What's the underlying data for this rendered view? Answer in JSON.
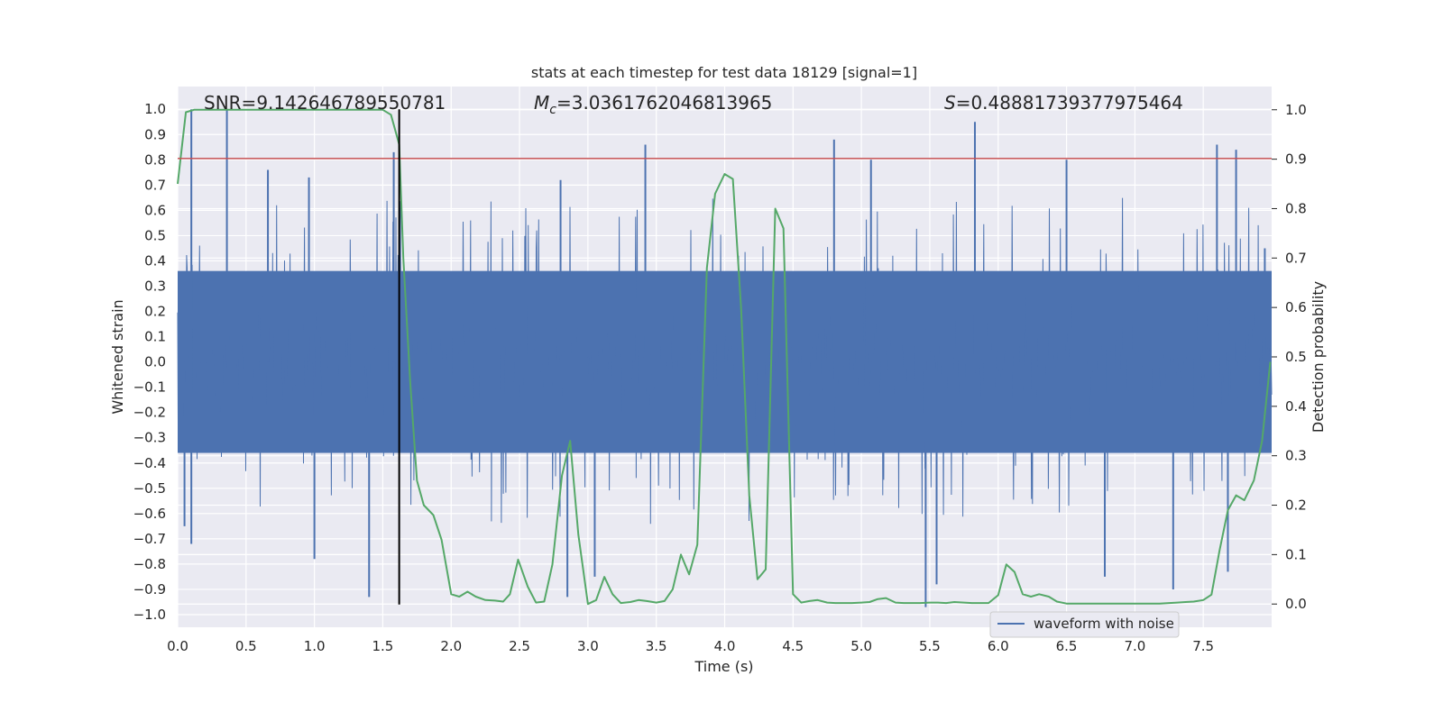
{
  "chart_data": {
    "type": "line",
    "title": "stats at each timestep for test data 18129 [signal=1]",
    "xlabel": "Time (s)",
    "ylabel": "Whitened strain",
    "y2label": "Detection probability",
    "xlim": [
      0.0,
      8.0
    ],
    "ylim": [
      -1.05,
      1.09
    ],
    "y2lim": [
      -0.047,
      1.047
    ],
    "xticks": [
      "0.0",
      "0.5",
      "1.0",
      "1.5",
      "2.0",
      "2.5",
      "3.0",
      "3.5",
      "4.0",
      "4.5",
      "5.0",
      "5.5",
      "6.0",
      "6.5",
      "7.0",
      "7.5"
    ],
    "yticks": [
      "1.0",
      "0.9",
      "0.8",
      "0.7",
      "0.6",
      "0.5",
      "0.4",
      "0.3",
      "0.2",
      "0.1",
      "0.0",
      "-0.1",
      "-0.2",
      "-0.3",
      "-0.4",
      "-0.5",
      "-0.6",
      "-0.7",
      "-0.8",
      "-0.9",
      "-1.0"
    ],
    "y2ticks": [
      "1.0",
      "0.9",
      "0.8",
      "0.7",
      "0.6",
      "0.5",
      "0.4",
      "0.3",
      "0.2",
      "0.1",
      "0.0"
    ],
    "grid": true,
    "legend_placement": "lower-right",
    "annotations": {
      "snr_prefix": "SNR=",
      "snr_value": "9.142646789550781",
      "mc_symbol": "M",
      "mc_subscript": "c",
      "mc_value": "=3.0361762046813965",
      "s_symbol": "S",
      "s_value": "=0.48881739377975464"
    },
    "series": [
      {
        "name": "waveform with noise",
        "axis": "left",
        "color": "#4c72b0",
        "style": "dense noise",
        "spikes_high": [
          [
            0.1,
            1.0
          ],
          [
            0.36,
            1.0
          ],
          [
            0.66,
            0.76
          ],
          [
            0.96,
            0.73
          ],
          [
            1.58,
            0.83
          ],
          [
            2.8,
            0.72
          ],
          [
            3.42,
            0.86
          ],
          [
            4.8,
            0.88
          ],
          [
            5.07,
            0.8
          ],
          [
            5.83,
            0.95
          ],
          [
            6.5,
            0.8
          ],
          [
            7.6,
            0.86
          ],
          [
            7.74,
            0.84
          ],
          [
            7.95,
            0.45
          ]
        ],
        "spikes_low": [
          [
            0.05,
            -0.65
          ],
          [
            0.1,
            -0.72
          ],
          [
            1.0,
            -0.78
          ],
          [
            1.4,
            -0.93
          ],
          [
            2.85,
            -0.93
          ],
          [
            3.05,
            -0.85
          ],
          [
            5.47,
            -0.97
          ],
          [
            5.55,
            -0.88
          ],
          [
            6.78,
            -0.85
          ],
          [
            7.28,
            -0.9
          ],
          [
            7.68,
            -0.83
          ]
        ]
      },
      {
        "name": "",
        "axis": "right",
        "color": "#55a868",
        "x": [
          0.0,
          0.06,
          0.12,
          0.5,
          1.0,
          1.5,
          1.56,
          1.62,
          1.65,
          1.7,
          1.75,
          1.8,
          1.87,
          1.93,
          2.0,
          2.06,
          2.12,
          2.18,
          2.25,
          2.32,
          2.38,
          2.43,
          2.49,
          2.56,
          2.62,
          2.68,
          2.74,
          2.81,
          2.87,
          2.93,
          3.0,
          3.06,
          3.12,
          3.18,
          3.24,
          3.31,
          3.37,
          3.43,
          3.5,
          3.56,
          3.62,
          3.68,
          3.74,
          3.8,
          3.87,
          3.93,
          4.0,
          4.06,
          4.12,
          4.18,
          4.24,
          4.3,
          4.37,
          4.43,
          4.5,
          4.56,
          4.62,
          4.68,
          4.75,
          4.81,
          4.87,
          4.93,
          5.0,
          5.06,
          5.12,
          5.18,
          5.25,
          5.31,
          5.37,
          5.43,
          5.5,
          5.56,
          5.62,
          5.68,
          5.75,
          5.81,
          5.87,
          5.93,
          6.0,
          6.06,
          6.12,
          6.18,
          6.24,
          6.3,
          6.37,
          6.43,
          6.5,
          6.56,
          6.62,
          6.68,
          6.75,
          6.81,
          6.87,
          6.93,
          7.0,
          7.06,
          7.12,
          7.18,
          7.25,
          7.31,
          7.37,
          7.43,
          7.5,
          7.56,
          7.62,
          7.68,
          7.74,
          7.8,
          7.87,
          7.93,
          7.99
        ],
        "values": [
          0.85,
          0.995,
          1.0,
          1.0,
          1.0,
          1.0,
          0.99,
          0.93,
          0.7,
          0.45,
          0.25,
          0.2,
          0.18,
          0.13,
          0.02,
          0.015,
          0.025,
          0.015,
          0.008,
          0.007,
          0.005,
          0.02,
          0.09,
          0.035,
          0.003,
          0.005,
          0.08,
          0.26,
          0.33,
          0.14,
          0.0,
          0.008,
          0.055,
          0.02,
          0.002,
          0.004,
          0.008,
          0.006,
          0.003,
          0.006,
          0.03,
          0.1,
          0.06,
          0.12,
          0.68,
          0.83,
          0.87,
          0.86,
          0.6,
          0.22,
          0.05,
          0.07,
          0.8,
          0.76,
          0.02,
          0.003,
          0.006,
          0.008,
          0.003,
          0.002,
          0.002,
          0.002,
          0.003,
          0.004,
          0.01,
          0.012,
          0.003,
          0.002,
          0.002,
          0.002,
          0.003,
          0.003,
          0.002,
          0.004,
          0.003,
          0.002,
          0.002,
          0.002,
          0.018,
          0.08,
          0.065,
          0.02,
          0.015,
          0.02,
          0.015,
          0.005,
          0.001,
          0.001,
          0.001,
          0.001,
          0.001,
          0.001,
          0.001,
          0.001,
          0.001,
          0.001,
          0.001,
          0.001,
          0.002,
          0.003,
          0.004,
          0.005,
          0.008,
          0.019,
          0.11,
          0.19,
          0.22,
          0.21,
          0.25,
          0.33,
          0.49
        ]
      }
    ],
    "threshold": {
      "axis": "left",
      "value": 0.805,
      "color": "#c44e52"
    },
    "marker": {
      "x": 1.62,
      "y_from": -0.96,
      "y_to": 1.0,
      "color": "#000000"
    }
  }
}
